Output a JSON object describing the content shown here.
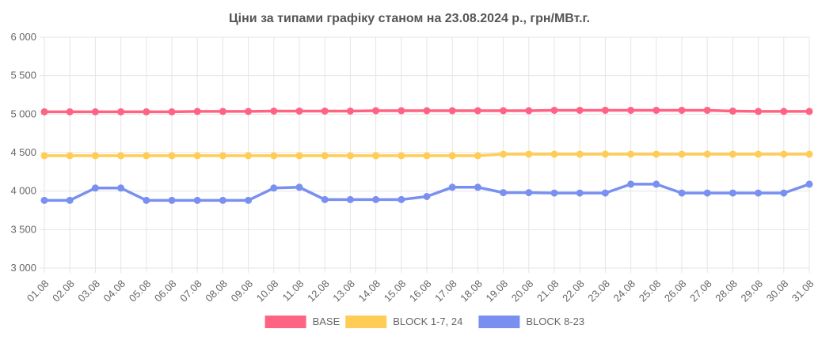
{
  "chart_data": {
    "type": "line",
    "title": "Ціни за типами графіку станом на 23.08.2024 р., грн/МВт.г.",
    "xlabel": "",
    "ylabel": "",
    "ylim": [
      3000,
      6000
    ],
    "yticks": [
      "6 000",
      "5 500",
      "5 000",
      "4 500",
      "4 000",
      "3 500",
      "3 000"
    ],
    "ytick_values": [
      6000,
      5500,
      5000,
      4500,
      4000,
      3500,
      3000
    ],
    "grid": true,
    "legend_position": "bottom",
    "categories": [
      "01.08",
      "02.08",
      "03.08",
      "04.08",
      "05.08",
      "06.08",
      "07.08",
      "08.08",
      "09.08",
      "10.08",
      "11.08",
      "12.08",
      "13.08",
      "14.08",
      "15.08",
      "16.08",
      "17.08",
      "18.08",
      "19.08",
      "20.08",
      "21.08",
      "22.08",
      "23.08",
      "24.08",
      "25.08",
      "26.08",
      "27.08",
      "28.08",
      "29.08",
      "30.08",
      "31.08"
    ],
    "series": [
      {
        "name": "BASE",
        "color": "#ff6384",
        "values": [
          5030,
          5030,
          5030,
          5030,
          5030,
          5030,
          5035,
          5035,
          5035,
          5040,
          5040,
          5040,
          5040,
          5045,
          5045,
          5045,
          5045,
          5045,
          5045,
          5045,
          5050,
          5050,
          5050,
          5050,
          5050,
          5050,
          5050,
          5040,
          5035,
          5035,
          5035
        ]
      },
      {
        "name": "BLOCK 1-7, 24",
        "color": "#ffcd56",
        "values": [
          4460,
          4460,
          4460,
          4460,
          4460,
          4460,
          4460,
          4460,
          4460,
          4460,
          4460,
          4460,
          4460,
          4460,
          4460,
          4460,
          4460,
          4460,
          4480,
          4480,
          4480,
          4480,
          4480,
          4480,
          4480,
          4480,
          4480,
          4480,
          4480,
          4480,
          4480
        ]
      },
      {
        "name": "BLOCK 8-23",
        "color": "#7a90f0",
        "values": [
          3880,
          3880,
          4040,
          4040,
          3880,
          3880,
          3880,
          3880,
          3880,
          4040,
          4050,
          3890,
          3890,
          3890,
          3890,
          3930,
          4050,
          4050,
          3980,
          3980,
          3975,
          3975,
          3975,
          4090,
          4090,
          3975,
          3975,
          3975,
          3975,
          3975,
          4090
        ]
      }
    ]
  }
}
